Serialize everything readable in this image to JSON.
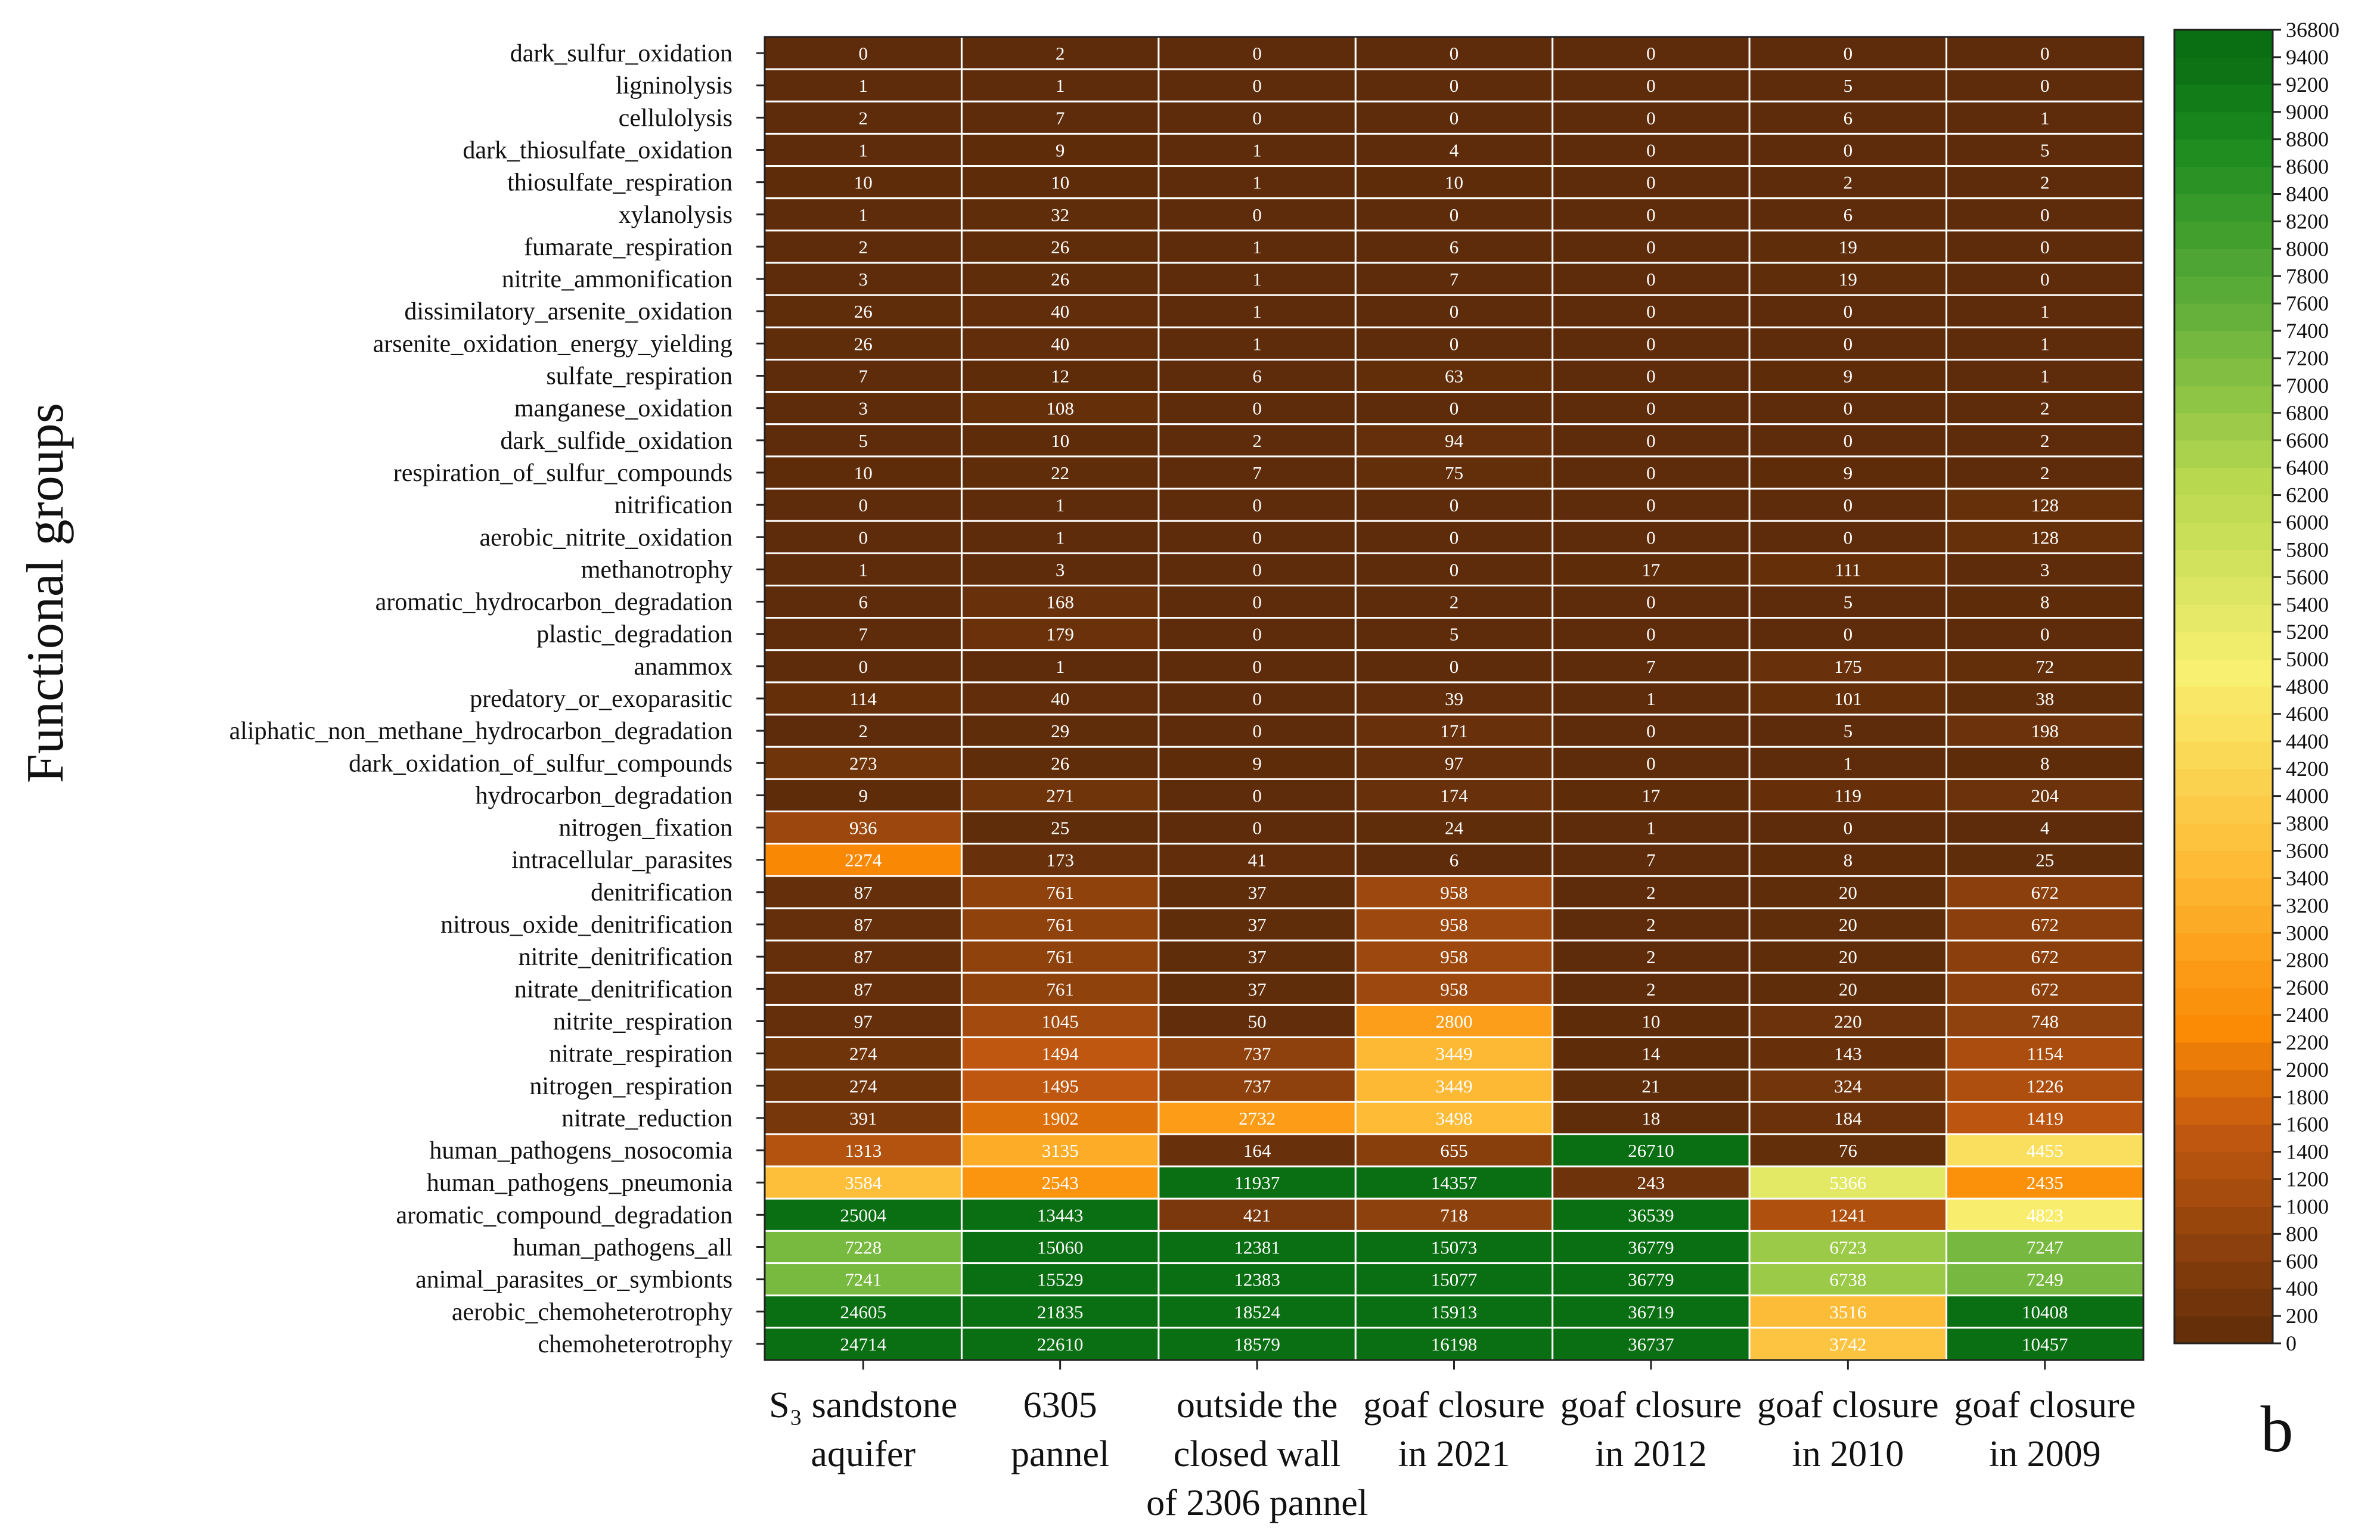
{
  "panel_letter": "b",
  "chart_data": {
    "type": "heatmap",
    "ylabel": "Functional groups",
    "columns": [
      [
        "S₃ sandstone",
        "aquifer"
      ],
      [
        "6305",
        "pannel"
      ],
      [
        "outside the",
        "closed wall",
        "of 2306 pannel"
      ],
      [
        "goaf closure",
        "in 2021"
      ],
      [
        "goaf closure",
        "in 2012"
      ],
      [
        "goaf closure",
        "in 2010"
      ],
      [
        "goaf closure",
        "in 2009"
      ]
    ],
    "rows": [
      "dark_sulfur_oxidation",
      "ligninolysis",
      "cellulolysis",
      "dark_thiosulfate_oxidation",
      "thiosulfate_respiration",
      "xylanolysis",
      "fumarate_respiration",
      "nitrite_ammonification",
      "dissimilatory_arsenite_oxidation",
      "arsenite_oxidation_energy_yielding",
      "sulfate_respiration",
      "manganese_oxidation",
      "dark_sulfide_oxidation",
      "respiration_of_sulfur_compounds",
      "nitrification",
      "aerobic_nitrite_oxidation",
      "methanotrophy",
      "aromatic_hydrocarbon_degradation",
      "plastic_degradation",
      "anammox",
      "predatory_or_exoparasitic",
      "aliphatic_non_methane_hydrocarbon_degradation",
      "dark_oxidation_of_sulfur_compounds",
      "hydrocarbon_degradation",
      "nitrogen_fixation",
      "intracellular_parasites",
      "denitrification",
      "nitrous_oxide_denitrification",
      "nitrite_denitrification",
      "nitrate_denitrification",
      "nitrite_respiration",
      "nitrate_respiration",
      "nitrogen_respiration",
      "nitrate_reduction",
      "human_pathogens_nosocomia",
      "human_pathogens_pneumonia",
      "aromatic_compound_degradation",
      "human_pathogens_all",
      "animal_parasites_or_symbionts",
      "aerobic_chemoheterotrophy",
      "chemoheterotrophy"
    ],
    "values": [
      [
        0,
        2,
        0,
        0,
        0,
        0,
        0
      ],
      [
        1,
        1,
        0,
        0,
        0,
        5,
        0
      ],
      [
        2,
        7,
        0,
        0,
        0,
        6,
        1
      ],
      [
        1,
        9,
        1,
        4,
        0,
        0,
        5
      ],
      [
        10,
        10,
        1,
        10,
        0,
        2,
        2
      ],
      [
        1,
        32,
        0,
        0,
        0,
        6,
        0
      ],
      [
        2,
        26,
        1,
        6,
        0,
        19,
        0
      ],
      [
        3,
        26,
        1,
        7,
        0,
        19,
        0
      ],
      [
        26,
        40,
        1,
        0,
        0,
        0,
        1
      ],
      [
        26,
        40,
        1,
        0,
        0,
        0,
        1
      ],
      [
        7,
        12,
        6,
        63,
        0,
        9,
        1
      ],
      [
        3,
        108,
        0,
        0,
        0,
        0,
        2
      ],
      [
        5,
        10,
        2,
        94,
        0,
        0,
        2
      ],
      [
        10,
        22,
        7,
        75,
        0,
        9,
        2
      ],
      [
        0,
        1,
        0,
        0,
        0,
        0,
        128
      ],
      [
        0,
        1,
        0,
        0,
        0,
        0,
        128
      ],
      [
        1,
        3,
        0,
        0,
        17,
        111,
        3
      ],
      [
        6,
        168,
        0,
        2,
        0,
        5,
        8
      ],
      [
        7,
        179,
        0,
        5,
        0,
        0,
        0
      ],
      [
        0,
        1,
        0,
        0,
        7,
        175,
        72
      ],
      [
        114,
        40,
        0,
        39,
        1,
        101,
        38
      ],
      [
        2,
        29,
        0,
        171,
        0,
        5,
        198
      ],
      [
        273,
        26,
        9,
        97,
        0,
        1,
        8
      ],
      [
        9,
        271,
        0,
        174,
        17,
        119,
        204
      ],
      [
        936,
        25,
        0,
        24,
        1,
        0,
        4
      ],
      [
        2274,
        173,
        41,
        6,
        7,
        8,
        25
      ],
      [
        87,
        761,
        37,
        958,
        2,
        20,
        672
      ],
      [
        87,
        761,
        37,
        958,
        2,
        20,
        672
      ],
      [
        87,
        761,
        37,
        958,
        2,
        20,
        672
      ],
      [
        87,
        761,
        37,
        958,
        2,
        20,
        672
      ],
      [
        97,
        1045,
        50,
        2800,
        10,
        220,
        748
      ],
      [
        274,
        1494,
        737,
        3449,
        14,
        143,
        1154
      ],
      [
        274,
        1495,
        737,
        3449,
        21,
        324,
        1226
      ],
      [
        391,
        1902,
        2732,
        3498,
        18,
        184,
        1419
      ],
      [
        1313,
        3135,
        164,
        655,
        26710,
        76,
        4455
      ],
      [
        3584,
        2543,
        11937,
        14357,
        243,
        5366,
        2435
      ],
      [
        25004,
        13443,
        421,
        718,
        36539,
        1241,
        4823
      ],
      [
        7228,
        15060,
        12381,
        15073,
        36779,
        6723,
        7247
      ],
      [
        7241,
        15529,
        12383,
        15077,
        36779,
        6738,
        7249
      ],
      [
        24605,
        21835,
        18524,
        15913,
        36719,
        3516,
        10408
      ],
      [
        24714,
        22610,
        18579,
        16198,
        36737,
        3742,
        10457
      ]
    ],
    "colorbar": {
      "ticks": [
        "0",
        "200",
        "400",
        "600",
        "800",
        "1000",
        "1200",
        "1400",
        "1600",
        "1800",
        "2000",
        "2200",
        "2400",
        "2600",
        "2800",
        "3000",
        "3200",
        "3400",
        "3600",
        "3800",
        "4000",
        "4200",
        "4400",
        "4600",
        "4800",
        "5000",
        "5200",
        "5400",
        "5600",
        "5800",
        "6000",
        "6200",
        "6400",
        "6600",
        "6800",
        "7000",
        "7200",
        "7400",
        "7600",
        "7800",
        "8000",
        "8200",
        "8400",
        "8600",
        "8800",
        "9000",
        "9200",
        "9400",
        "36800"
      ],
      "scale": "piecewise: 0-9400 linear in steps of 200, top step to 36800",
      "colors": [
        "#5e2c0a",
        "#c75a10",
        "#fb8a05",
        "#fdbf3a",
        "#f8f070",
        "#b8d84f",
        "#5fae3a",
        "#1a8a1e",
        "#0a6e12"
      ]
    }
  }
}
